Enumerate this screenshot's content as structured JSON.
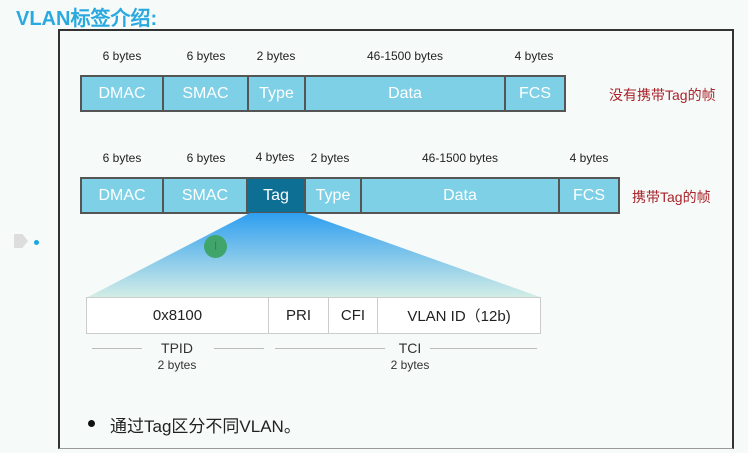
{
  "title": "VLAN标签介绍:",
  "untagged": {
    "sizes": [
      "6 bytes",
      "6 bytes",
      "2 bytes",
      "46-1500 bytes",
      "4 bytes"
    ],
    "fields": [
      "DMAC",
      "SMAC",
      "Type",
      "Data",
      "FCS"
    ],
    "caption": "没有携带Tag的帧"
  },
  "tagged": {
    "sizes": [
      "6 bytes",
      "6 bytes",
      "4 bytes",
      "2 bytes",
      "46-1500 bytes",
      "4 bytes"
    ],
    "fields": [
      "DMAC",
      "SMAC",
      "Tag",
      "Type",
      "Data",
      "FCS"
    ],
    "caption": "携带Tag的帧"
  },
  "tag_detail": {
    "fields": [
      "0x8100",
      "PRI",
      "CFI",
      "VLAN ID（12b)"
    ],
    "tpid": {
      "name": "TPID",
      "size": "2 bytes"
    },
    "tci": {
      "name": "TCI",
      "size": "2 bytes"
    }
  },
  "bullet": "通过Tag区分不同VLAN。",
  "colors": {
    "title": "#2aa9e0",
    "cell": "#7dd0e6",
    "tag": "#0e6f94",
    "caption": "#a8232a"
  }
}
